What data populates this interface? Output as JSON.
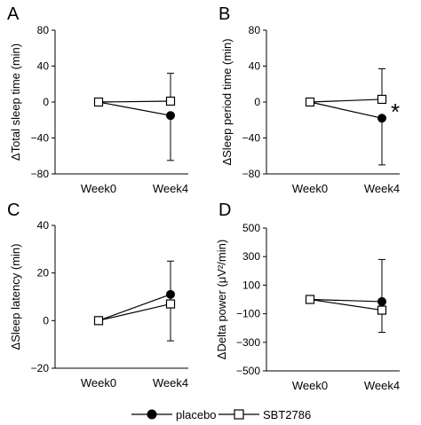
{
  "chart_data": [
    {
      "panel": "A",
      "type": "line",
      "categories": [
        "Week0",
        "Week4"
      ],
      "ylabel": "ΔTotal sleep time (min)",
      "ylim": [
        -80,
        80
      ],
      "yticks": [
        80,
        40,
        0,
        -40,
        -80
      ],
      "ytick_labels": [
        "80",
        "40",
        "0",
        "−40",
        "−80"
      ],
      "series": [
        {
          "name": "placebo",
          "marker": "filled-circle",
          "values": [
            0,
            -15
          ],
          "error": [
            0,
            50
          ]
        },
        {
          "name": "SBT2786",
          "marker": "open-square",
          "values": [
            0,
            1
          ],
          "error": [
            0,
            31
          ]
        }
      ],
      "annotation": ""
    },
    {
      "panel": "B",
      "type": "line",
      "categories": [
        "Week0",
        "Week4"
      ],
      "ylabel": "ΔSleep period time (min)",
      "ylim": [
        -80,
        80
      ],
      "yticks": [
        80,
        40,
        0,
        -40,
        -80
      ],
      "ytick_labels": [
        "80",
        "40",
        "0",
        "−40",
        "−80"
      ],
      "series": [
        {
          "name": "placebo",
          "marker": "filled-circle",
          "values": [
            0,
            -18
          ],
          "error": [
            0,
            52
          ]
        },
        {
          "name": "SBT2786",
          "marker": "open-square",
          "values": [
            0,
            3
          ],
          "error": [
            0,
            34
          ]
        }
      ],
      "annotation": "*"
    },
    {
      "panel": "C",
      "type": "line",
      "categories": [
        "Week0",
        "Week4"
      ],
      "ylabel": "ΔSleep latency (min)",
      "ylim": [
        -20,
        40
      ],
      "yticks": [
        40,
        20,
        0,
        -20
      ],
      "ytick_labels": [
        "40",
        "20",
        "0",
        "−20"
      ],
      "series": [
        {
          "name": "placebo",
          "marker": "filled-circle",
          "values": [
            0,
            11
          ],
          "error": [
            0,
            19.5
          ]
        },
        {
          "name": "SBT2786",
          "marker": "open-square",
          "values": [
            0,
            7
          ],
          "error": [
            0,
            18
          ]
        }
      ],
      "annotation": ""
    },
    {
      "panel": "D",
      "type": "line",
      "categories": [
        "Week0",
        "Week4"
      ],
      "ylabel": "ΔDelta power (μV²/min)",
      "ylim": [
        -500,
        500
      ],
      "yticks": [
        500,
        300,
        100,
        -100,
        -300,
        -500
      ],
      "ytick_labels": [
        "500",
        "300",
        "100",
        "−100",
        "−300",
        "−500"
      ],
      "series": [
        {
          "name": "placebo",
          "marker": "filled-circle",
          "values": [
            0,
            -15
          ],
          "error": [
            0,
            215
          ]
        },
        {
          "name": "SBT2786",
          "marker": "open-square",
          "values": [
            0,
            -75
          ],
          "error": [
            0,
            355
          ]
        }
      ],
      "annotation": ""
    }
  ],
  "legend": {
    "items": [
      {
        "label": "placebo",
        "marker": "filled-circle"
      },
      {
        "label": "SBT2786",
        "marker": "open-square"
      }
    ]
  }
}
